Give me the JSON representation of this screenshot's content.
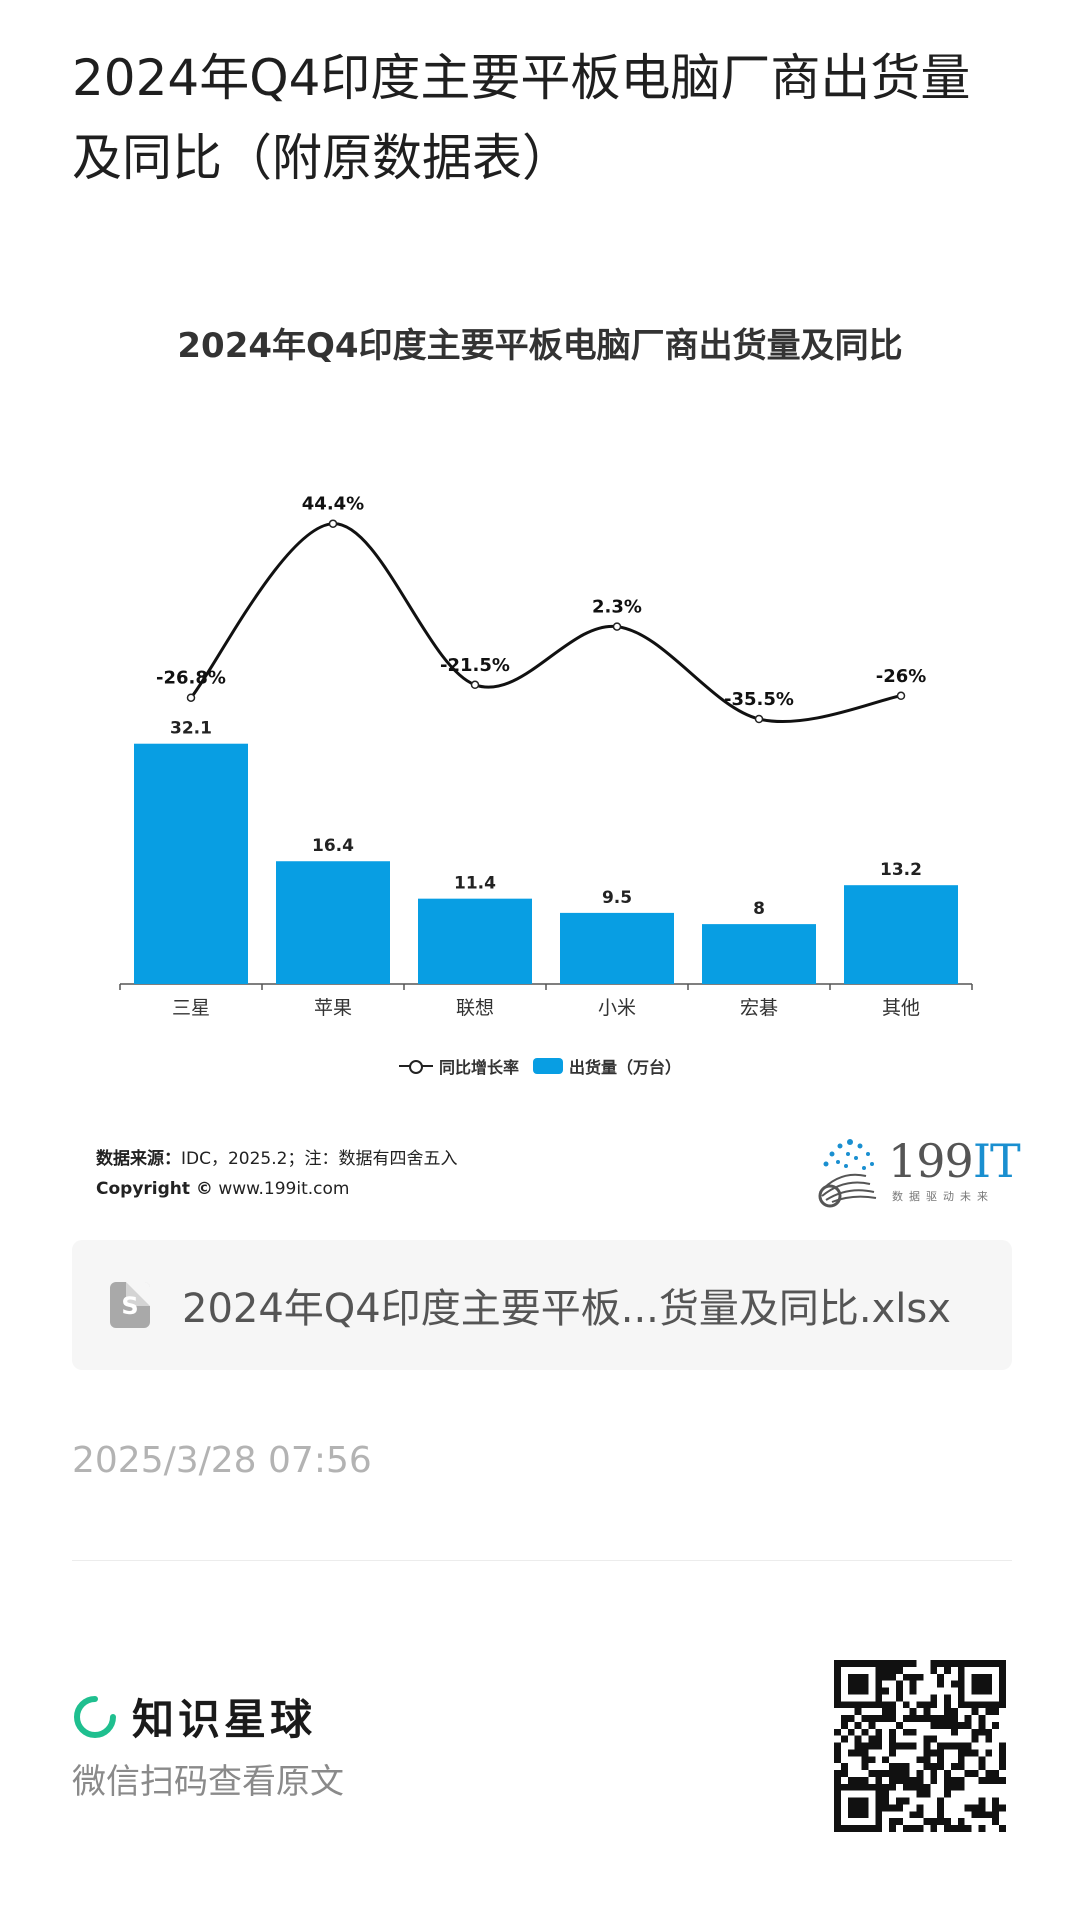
{
  "page": {
    "title": "2024年Q4印度主要平板电脑厂商出货量及同比（附原数据表）"
  },
  "chart_data": {
    "type": "bar",
    "title": "2024年Q4印度主要平板电脑厂商出货量及同比",
    "categories": [
      "三星",
      "苹果",
      "联想",
      "小米",
      "宏碁",
      "其他"
    ],
    "series": [
      {
        "name": "出货量（万台）",
        "type": "bar",
        "values": [
          32.1,
          16.4,
          11.4,
          9.5,
          8,
          13.2
        ],
        "color": "#089ee3"
      },
      {
        "name": "同比增长率",
        "type": "line",
        "values": [
          -26.8,
          44.4,
          -21.5,
          2.3,
          -35.5,
          -26
        ],
        "value_labels": [
          "-26.8%",
          "44.4%",
          "-21.5%",
          "2.3%",
          "-35.5%",
          "-26%"
        ],
        "color": "#111111"
      }
    ],
    "legend": "bottom",
    "grid": false,
    "xlabel": "",
    "ylabel": ""
  },
  "source": {
    "label": "数据来源：",
    "text": "IDC，2025.2；注：数据有四舍五入",
    "copyright_label": "Copyright ©",
    "site": "www.199it.com"
  },
  "logo": {
    "text": "199IT",
    "subtitle": "数据驱动未来"
  },
  "file": {
    "icon": "spreadsheet-icon",
    "icon_letter": "S",
    "name": "2024年Q4印度主要平板...货量及同比.xlsx"
  },
  "meta": {
    "timestamp": "2025/3/28 07:56"
  },
  "footer": {
    "brand": "知识星球",
    "subtitle": "微信扫码查看原文",
    "brand_color": "#1fbf8f"
  }
}
